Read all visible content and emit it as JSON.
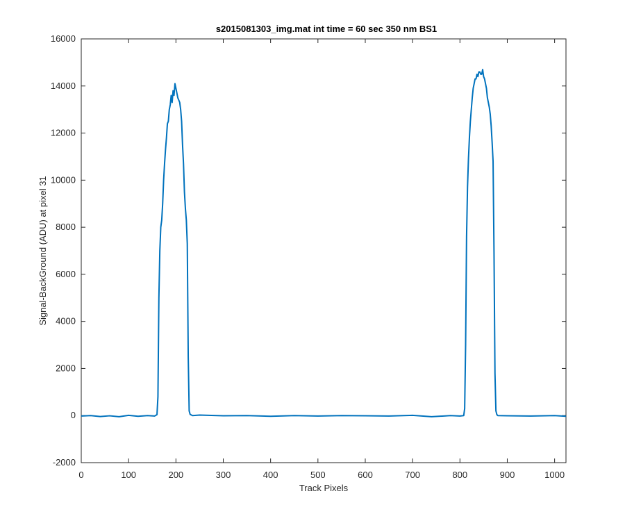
{
  "chart_data": {
    "type": "line",
    "title": "s2015081303_img.mat int time = 60 sec  350 nm BS1",
    "xlabel": "Track Pixels",
    "ylabel": "Signal-BackGround (ADU) at pixel 31",
    "xlim": [
      0,
      1024
    ],
    "ylim": [
      -2000,
      16000
    ],
    "xticks": [
      0,
      100,
      200,
      300,
      400,
      500,
      600,
      700,
      800,
      900,
      1000
    ],
    "yticks": [
      -2000,
      0,
      2000,
      4000,
      6000,
      8000,
      10000,
      12000,
      14000,
      16000
    ],
    "grid": false,
    "line_color": "#0072BD",
    "series": [
      {
        "x": [
          0,
          20,
          40,
          60,
          80,
          100,
          120,
          140,
          155,
          160,
          162,
          164,
          166,
          168,
          170,
          172,
          174,
          176,
          178,
          180,
          182,
          184,
          186,
          188,
          190,
          192,
          194,
          196,
          198,
          200,
          202,
          204,
          206,
          208,
          210,
          212,
          214,
          216,
          218,
          220,
          222,
          224,
          226,
          228,
          230,
          235,
          250,
          300,
          350,
          400,
          450,
          500,
          550,
          600,
          650,
          700,
          740,
          780,
          800,
          808,
          810,
          812,
          814,
          816,
          818,
          820,
          822,
          824,
          826,
          828,
          830,
          832,
          834,
          836,
          838,
          840,
          842,
          844,
          846,
          848,
          850,
          852,
          854,
          856,
          858,
          860,
          862,
          864,
          866,
          868,
          870,
          872,
          874,
          876,
          878,
          880,
          900,
          950,
          1000,
          1024
        ],
        "y": [
          -20,
          0,
          -40,
          -10,
          -50,
          10,
          -30,
          0,
          -20,
          40,
          800,
          5000,
          7000,
          8000,
          8300,
          9000,
          10000,
          10700,
          11300,
          11800,
          12400,
          12500,
          13000,
          13200,
          13600,
          13300,
          13800,
          13600,
          14100,
          13900,
          13700,
          13500,
          13400,
          13300,
          13000,
          12500,
          11500,
          10700,
          9500,
          8800,
          8300,
          7300,
          2500,
          200,
          50,
          0,
          20,
          -10,
          0,
          -30,
          0,
          -20,
          0,
          -10,
          -20,
          10,
          -50,
          0,
          -20,
          0,
          300,
          3000,
          7600,
          9700,
          10900,
          11800,
          12500,
          13000,
          13500,
          13900,
          14100,
          14300,
          14300,
          14500,
          14400,
          14600,
          14600,
          14500,
          14500,
          14700,
          14400,
          14300,
          14100,
          13900,
          13500,
          13300,
          13100,
          12800,
          12300,
          11600,
          10800,
          6900,
          1800,
          200,
          40,
          0,
          -10,
          -20,
          0,
          -30
        ]
      }
    ]
  }
}
